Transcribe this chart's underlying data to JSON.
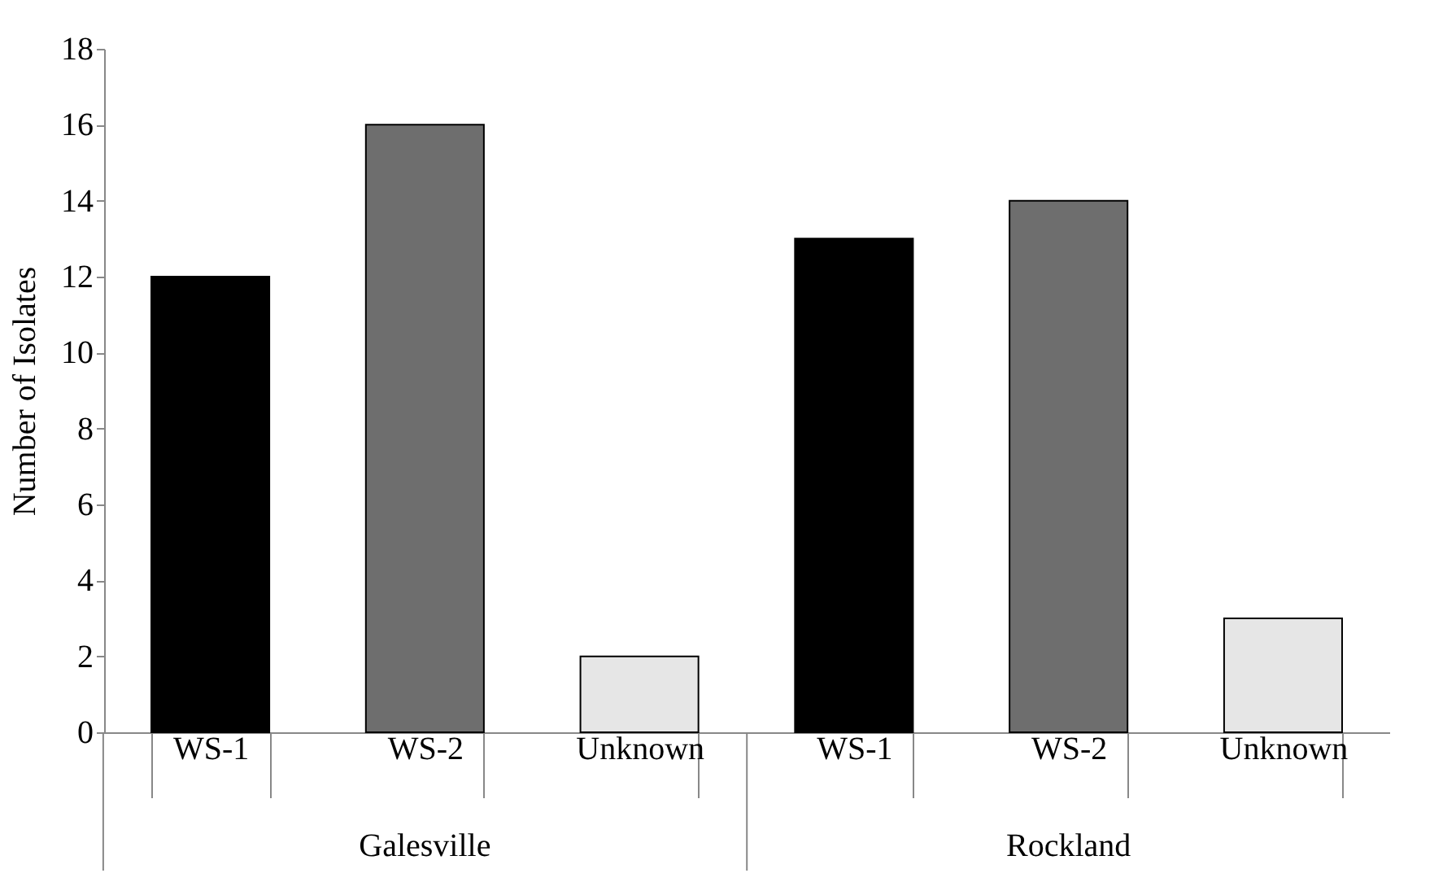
{
  "chart_data": {
    "type": "bar",
    "ylabel": "Number of Isolates",
    "categories": [
      "WS-1",
      "WS-2",
      "Unknown",
      "WS-1",
      "WS-2",
      "Unknown"
    ],
    "values": [
      12,
      16,
      2,
      13,
      14,
      3
    ],
    "colors": [
      "#000000",
      "#6e6e6e",
      "#e6e6e6",
      "#000000",
      "#6e6e6e",
      "#e6e6e6"
    ],
    "ylim": [
      0,
      18
    ],
    "yticks": [
      0,
      2,
      4,
      6,
      8,
      10,
      12,
      14,
      16,
      18
    ],
    "grid": false,
    "legend": false,
    "annotations": [
      "Galesville",
      "Rockland"
    ]
  }
}
